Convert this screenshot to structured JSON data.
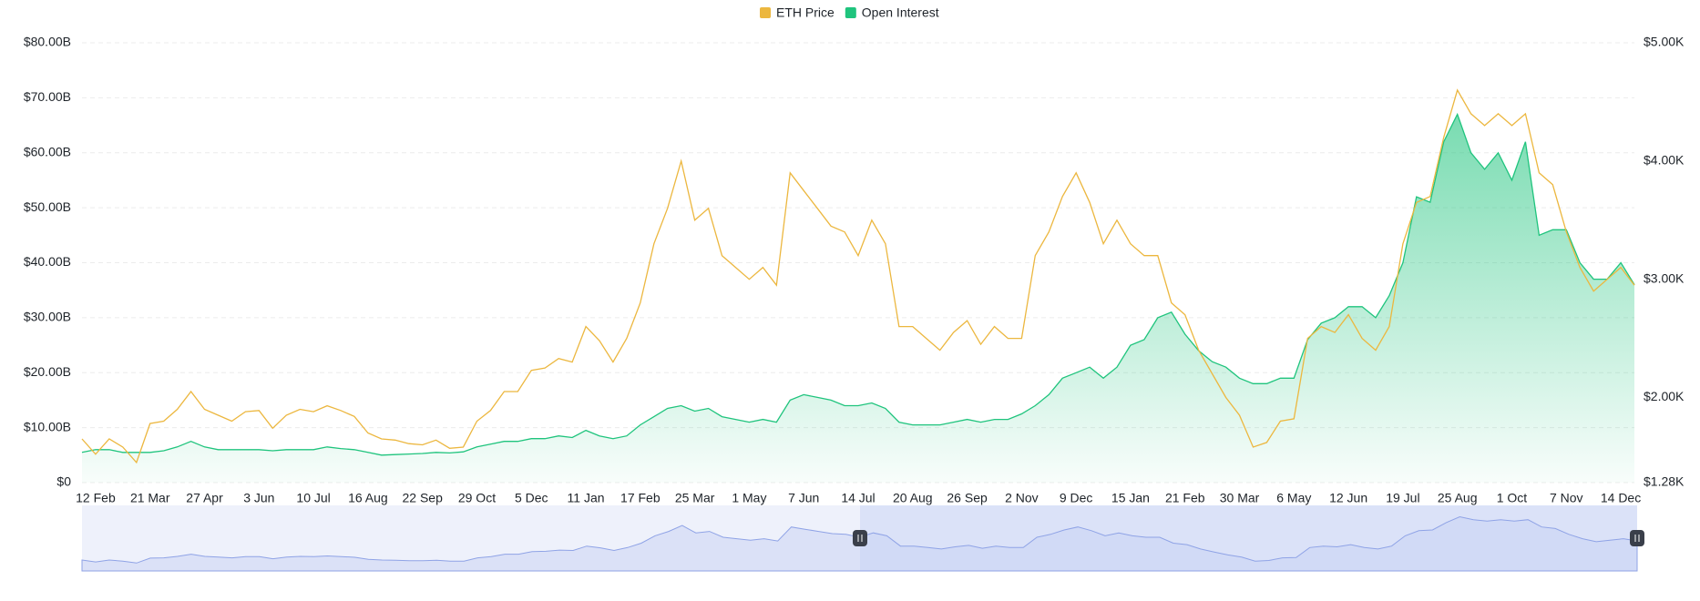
{
  "chart_data": {
    "type": "line",
    "categories": [
      null,
      "12 Feb",
      null,
      null,
      null,
      "21 Mar",
      null,
      null,
      null,
      "27 Apr",
      null,
      null,
      null,
      "3 Jun",
      null,
      null,
      null,
      "10 Jul",
      null,
      null,
      null,
      "16 Aug",
      null,
      null,
      null,
      "22 Sep",
      null,
      null,
      null,
      "29 Oct",
      null,
      null,
      null,
      "5 Dec",
      null,
      null,
      null,
      "11 Jan",
      null,
      null,
      null,
      "17 Feb",
      null,
      null,
      null,
      "25 Mar",
      null,
      null,
      null,
      "1 May",
      null,
      null,
      null,
      "7 Jun",
      null,
      null,
      null,
      "14 Jul",
      null,
      null,
      null,
      "20 Aug",
      null,
      null,
      null,
      "26 Sep",
      null,
      null,
      null,
      "2 Nov",
      null,
      null,
      null,
      "9 Dec",
      null,
      null,
      null,
      "15 Jan",
      null,
      null,
      null,
      "21 Feb",
      null,
      null,
      null,
      "30 Mar",
      null,
      null,
      null,
      "6 May",
      null,
      null,
      null,
      "12 Jun",
      null,
      null,
      null,
      "19 Jul",
      null,
      null,
      null,
      "25 Aug",
      null,
      null,
      null,
      "1 Oct",
      null,
      null,
      null,
      "7 Nov",
      null,
      null,
      null,
      "14 Dec",
      null
    ],
    "series": [
      {
        "name": "ETH Price",
        "color": "#ecb73f",
        "axis": "y2",
        "style": "line",
        "values": [
          1650,
          1520,
          1650,
          1580,
          1450,
          1780,
          1800,
          1900,
          2050,
          1900,
          1850,
          1800,
          1880,
          1890,
          1740,
          1850,
          1900,
          1880,
          1930,
          1890,
          1840,
          1700,
          1650,
          1640,
          1610,
          1600,
          1640,
          1570,
          1580,
          1800,
          1890,
          2050,
          2050,
          2230,
          2250,
          2330,
          2300,
          2600,
          2480,
          2300,
          2500,
          2800,
          3300,
          3600,
          4000,
          3500,
          3600,
          3200,
          3100,
          3000,
          3100,
          2950,
          3900,
          3750,
          3600,
          3450,
          3400,
          3200,
          3500,
          3300,
          2600,
          2600,
          2500,
          2400,
          2550,
          2650,
          2450,
          2600,
          2500,
          2500,
          3200,
          3400,
          3700,
          3900,
          3650,
          3300,
          3500,
          3300,
          3200,
          3200,
          2800,
          2700,
          2400,
          2200,
          2000,
          1850,
          1580,
          1620,
          1800,
          1820,
          2500,
          2600,
          2550,
          2700,
          2500,
          2400,
          2600,
          3300,
          3650,
          3700,
          4200,
          4600,
          4400,
          4300,
          4400,
          4300,
          4400,
          3900,
          3800,
          3400,
          3100,
          2900,
          3000,
          3100,
          2950
        ]
      },
      {
        "name": "Open Interest",
        "color": "#1fc47d",
        "axis": "y",
        "style": "area",
        "values": [
          5.5,
          6,
          6,
          5.5,
          5.5,
          5.5,
          5.8,
          6.5,
          7.5,
          6.5,
          6,
          6,
          6,
          6,
          5.8,
          6,
          6,
          6,
          6.5,
          6.2,
          6,
          5.5,
          5,
          5.1,
          5.2,
          5.3,
          5.5,
          5.4,
          5.6,
          6.5,
          7,
          7.5,
          7.5,
          8,
          8,
          8.5,
          8.2,
          9.5,
          8.5,
          8,
          8.5,
          10.5,
          12,
          13.5,
          14,
          13,
          13.5,
          12,
          11.5,
          11,
          11.5,
          11,
          15,
          16,
          15.5,
          15,
          14,
          14,
          14.5,
          13.5,
          11,
          10.5,
          10.5,
          10.5,
          11,
          11.5,
          11,
          11.5,
          11.5,
          12.5,
          14,
          16,
          19,
          20,
          21,
          19,
          21,
          25,
          26,
          30,
          31,
          27,
          24,
          22,
          21,
          19,
          18,
          18,
          19,
          19,
          26,
          29,
          30,
          32,
          32,
          30,
          34,
          40,
          52,
          51,
          62,
          67,
          60,
          57,
          60,
          55,
          62,
          45,
          46,
          46,
          40,
          37,
          37,
          40,
          36
        ]
      }
    ],
    "ylim": [
      0,
      80
    ],
    "yticks": [
      {
        "value": 0,
        "label": "$0"
      },
      {
        "value": 10,
        "label": "$10.00B"
      },
      {
        "value": 20,
        "label": "$20.00B"
      },
      {
        "value": 30,
        "label": "$30.00B"
      },
      {
        "value": 40,
        "label": "$40.00B"
      },
      {
        "value": 50,
        "label": "$50.00B"
      },
      {
        "value": 60,
        "label": "$60.00B"
      },
      {
        "value": 70,
        "label": "$70.00B"
      },
      {
        "value": 80,
        "label": "$80.00B"
      }
    ],
    "y2lim": [
      1280,
      5000
    ],
    "y2ticks": [
      {
        "value": 1280,
        "label": "$1.28K"
      },
      {
        "value": 2000,
        "label": "$2.00K"
      },
      {
        "value": 3000,
        "label": "$3.00K"
      },
      {
        "value": 4000,
        "label": "$4.00K"
      },
      {
        "value": 5000,
        "label": "$5.00K"
      }
    ],
    "grid": true,
    "legend": "top"
  }
}
